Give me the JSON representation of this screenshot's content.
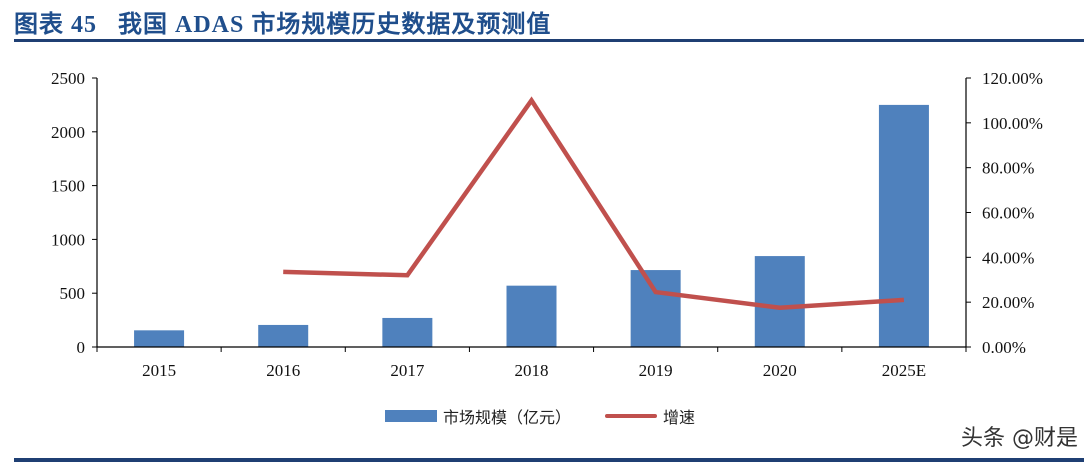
{
  "header": {
    "title": "图表 45   我国 ADAS 市场规模历史数据及预测值"
  },
  "watermark": "头条 @财是",
  "legend": {
    "bar_label": "市场规模（亿元）",
    "line_label": "增速"
  },
  "colors": {
    "bar": "#4f81bd",
    "line": "#c0504d",
    "title": "#1f4e8c",
    "rule": "#1f3f73"
  },
  "chart_data": {
    "type": "bar+line",
    "title": "我国 ADAS 市场规模历史数据及预测值",
    "categories": [
      "2015",
      "2016",
      "2017",
      "2018",
      "2019",
      "2020",
      "2025E"
    ],
    "series": [
      {
        "name": "市场规模（亿元）",
        "type": "bar",
        "axis": "left",
        "values": [
          155,
          205,
          270,
          570,
          715,
          845,
          2250
        ]
      },
      {
        "name": "增速",
        "type": "line",
        "axis": "right",
        "values": [
          null,
          33.5,
          32.0,
          110.0,
          24.5,
          17.5,
          21.0
        ]
      }
    ],
    "left_axis": {
      "min": 0,
      "max": 2500,
      "ticks": [
        "0",
        "500",
        "1000",
        "1500",
        "2000",
        "2500"
      ]
    },
    "right_axis": {
      "min": 0,
      "max": 120,
      "ticks": [
        "0.00%",
        "20.00%",
        "40.00%",
        "60.00%",
        "80.00%",
        "100.00%",
        "120.00%"
      ]
    },
    "xlabel": "",
    "ylabel": "",
    "grid": false,
    "legend_position": "bottom"
  }
}
